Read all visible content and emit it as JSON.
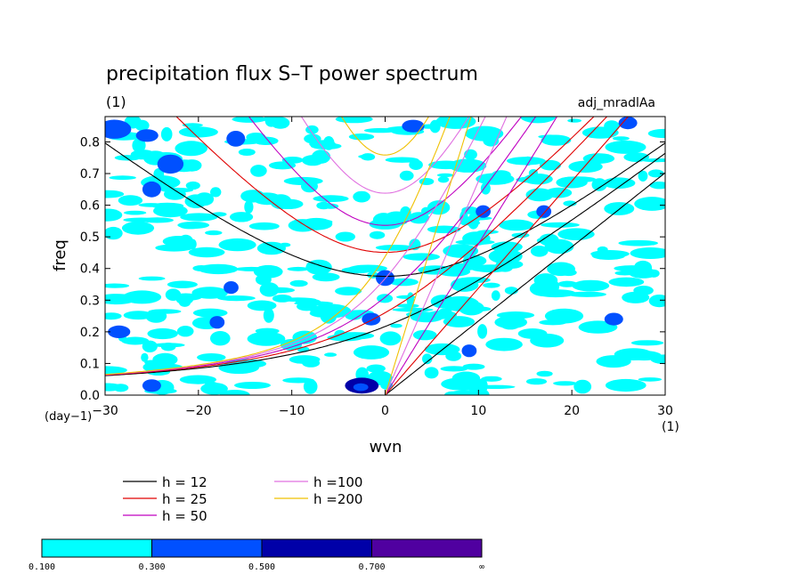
{
  "chart_data": {
    "type": "contour",
    "title": "precipitation flux S–T power spectrum",
    "subtitle": "(1)",
    "run_label": "adj_mradlAa",
    "xlabel": "wvn",
    "ylabel": "freq",
    "x_unit": "(1)",
    "y_unit": "(day−1)",
    "xlim": [
      -30,
      30
    ],
    "ylim": [
      0,
      0.88
    ],
    "x_ticks": [
      -30,
      -20,
      -10,
      0,
      10,
      20,
      30
    ],
    "x_tick_labels": [
      "−30",
      "−20",
      "−10",
      "0",
      "10",
      "20",
      "30"
    ],
    "y_ticks": [
      0.0,
      0.1,
      0.2,
      0.3,
      0.4,
      0.5,
      0.6,
      0.7,
      0.8
    ],
    "y_tick_labels": [
      "0.0",
      "0.1",
      "0.2",
      "0.3",
      "0.4",
      "0.5",
      "0.6",
      "0.7",
      "0.8"
    ],
    "dispersion_curves": [
      {
        "label": "h = 12",
        "h": 12,
        "color": "#000000"
      },
      {
        "label": "h = 25",
        "h": 25,
        "color": "#e00000"
      },
      {
        "label": "h = 50",
        "h": 50,
        "color": "#c000c0"
      },
      {
        "label": "h =100",
        "h": 100,
        "color": "#e070e0"
      },
      {
        "label": "h =200",
        "h": 200,
        "color": "#f0c000"
      }
    ],
    "colorbar": {
      "levels": [
        "0.100",
        "0.300",
        "0.500",
        "0.700",
        "∞"
      ],
      "colors": [
        "#00ffff",
        "#0050ff",
        "#0000a8",
        "#5000a0"
      ]
    },
    "contour_patches": [
      {
        "x": -29,
        "y": 0.84,
        "w": 1.8,
        "h": 0.03,
        "level": 1
      },
      {
        "x": -25.5,
        "y": 0.82,
        "w": 1.2,
        "h": 0.02,
        "level": 1
      },
      {
        "x": -23,
        "y": 0.73,
        "w": 1.4,
        "h": 0.03,
        "level": 1
      },
      {
        "x": -25,
        "y": 0.65,
        "w": 1.0,
        "h": 0.025,
        "level": 1
      },
      {
        "x": -16,
        "y": 0.81,
        "w": 1.0,
        "h": 0.025,
        "level": 1
      },
      {
        "x": -28.5,
        "y": 0.2,
        "w": 1.2,
        "h": 0.02,
        "level": 1
      },
      {
        "x": -18,
        "y": 0.23,
        "w": 0.8,
        "h": 0.02,
        "level": 1
      },
      {
        "x": -16.5,
        "y": 0.34,
        "w": 0.8,
        "h": 0.02,
        "level": 1
      },
      {
        "x": -25,
        "y": 0.03,
        "w": 1.0,
        "h": 0.02,
        "level": 1
      },
      {
        "x": -2.5,
        "y": 0.03,
        "w": 1.8,
        "h": 0.025,
        "level": 2
      },
      {
        "x": -2.6,
        "y": 0.025,
        "w": 0.8,
        "h": 0.012,
        "level": 1
      },
      {
        "x": -1.5,
        "y": 0.24,
        "w": 1.0,
        "h": 0.02,
        "level": 1
      },
      {
        "x": 3,
        "y": 0.85,
        "w": 1.2,
        "h": 0.02,
        "level": 1
      },
      {
        "x": 0,
        "y": 0.37,
        "w": 1.0,
        "h": 0.025,
        "level": 1
      },
      {
        "x": 10.5,
        "y": 0.58,
        "w": 0.8,
        "h": 0.02,
        "level": 1
      },
      {
        "x": 17,
        "y": 0.58,
        "w": 0.8,
        "h": 0.02,
        "level": 1
      },
      {
        "x": 24.5,
        "y": 0.24,
        "w": 1.0,
        "h": 0.02,
        "level": 1
      },
      {
        "x": 26,
        "y": 0.86,
        "w": 1.0,
        "h": 0.02,
        "level": 1
      },
      {
        "x": 9,
        "y": 0.14,
        "w": 0.8,
        "h": 0.02,
        "level": 1
      }
    ]
  }
}
